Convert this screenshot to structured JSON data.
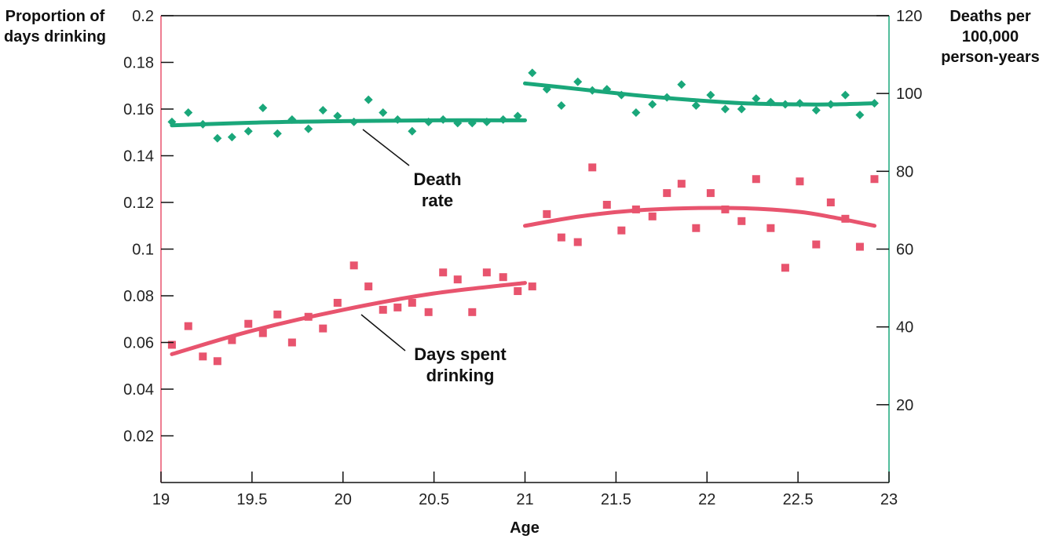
{
  "chart_data": {
    "type": "scatter",
    "xlabel": "Age",
    "ylabel_left": [
      "Proportion of",
      "days drinking"
    ],
    "ylabel_right": [
      "Deaths per",
      "100,000",
      "person-years"
    ],
    "xlim": [
      19,
      23
    ],
    "ylim_left": [
      0,
      0.2
    ],
    "ylim_right": [
      0,
      120
    ],
    "x_ticks": [
      "19",
      "19.5",
      "20",
      "20.5",
      "21",
      "21.5",
      "22",
      "22.5",
      "23"
    ],
    "y_left_ticks": [
      "0.02",
      "0.04",
      "0.06",
      "0.08",
      "0.1",
      "0.12",
      "0.14",
      "0.16",
      "0.18",
      "0.2"
    ],
    "y_right_ticks": [
      "20",
      "40",
      "60",
      "80",
      "100",
      "120"
    ],
    "colors": {
      "days": "#e8546e",
      "death": "#1aa77a",
      "left_axis": "#e8546e",
      "right_axis": "#1aa77a",
      "frame": "#111111"
    },
    "annotations": {
      "death": [
        "Death",
        "rate"
      ],
      "days": [
        "Days spent",
        "drinking"
      ]
    },
    "series": [
      {
        "key": "days",
        "axis": "left",
        "marker": "square",
        "x": [
          19.06,
          19.15,
          19.23,
          19.31,
          19.39,
          19.48,
          19.56,
          19.64,
          19.72,
          19.81,
          19.89,
          19.97,
          20.06,
          20.14,
          20.22,
          20.3,
          20.38,
          20.47,
          20.55,
          20.63,
          20.71,
          20.79,
          20.88,
          20.96,
          21.04,
          21.12,
          21.2,
          21.29,
          21.37,
          21.45,
          21.53,
          21.61,
          21.7,
          21.78,
          21.86,
          21.94,
          22.02,
          22.1,
          22.19,
          22.27,
          22.35,
          22.43,
          22.51,
          22.6,
          22.68,
          22.76,
          22.84,
          22.92
        ],
        "y": [
          0.059,
          0.067,
          0.054,
          0.052,
          0.061,
          0.068,
          0.064,
          0.072,
          0.06,
          0.071,
          0.066,
          0.077,
          0.093,
          0.084,
          0.074,
          0.075,
          0.077,
          0.073,
          0.09,
          0.087,
          0.073,
          0.09,
          0.088,
          0.082,
          0.084,
          0.115,
          0.105,
          0.103,
          0.135,
          0.119,
          0.108,
          0.117,
          0.114,
          0.124,
          0.128,
          0.109,
          0.124,
          0.117,
          0.112,
          0.13,
          0.109,
          0.092,
          0.129,
          0.102,
          0.12,
          0.113,
          0.101,
          0.13
        ]
      },
      {
        "key": "death",
        "axis": "right",
        "marker": "diamond",
        "x": [
          19.06,
          19.15,
          19.23,
          19.31,
          19.39,
          19.48,
          19.56,
          19.64,
          19.72,
          19.81,
          19.89,
          19.97,
          20.06,
          20.14,
          20.22,
          20.3,
          20.38,
          20.47,
          20.55,
          20.63,
          20.71,
          20.79,
          20.88,
          20.96,
          21.04,
          21.12,
          21.2,
          21.29,
          21.37,
          21.45,
          21.53,
          21.61,
          21.7,
          21.78,
          21.86,
          21.94,
          22.02,
          22.1,
          22.19,
          22.27,
          22.35,
          22.43,
          22.51,
          22.6,
          22.68,
          22.76,
          22.84,
          22.92
        ],
        "y": [
          92.7,
          95.1,
          92.1,
          88.5,
          88.8,
          90.3,
          96.3,
          89.7,
          93.3,
          90.9,
          95.7,
          94.2,
          92.7,
          98.4,
          95.1,
          93.3,
          90.3,
          92.7,
          93.3,
          92.4,
          92.4,
          92.7,
          93.3,
          94.2,
          105.3,
          101.1,
          96.9,
          103.0,
          100.8,
          101.1,
          99.6,
          95.1,
          97.2,
          99.0,
          102.3,
          96.9,
          99.6,
          96.0,
          96.0,
          98.7,
          97.8,
          97.2,
          97.5,
          95.7,
          97.2,
          99.6,
          94.5,
          97.5
        ]
      }
    ],
    "fits": [
      {
        "key": "days",
        "axis": "left",
        "x": [
          19.06,
          19.5,
          20.0,
          20.5,
          21.0
        ],
        "y": [
          0.055,
          0.065,
          0.074,
          0.081,
          0.0855
        ]
      },
      {
        "key": "days",
        "axis": "left",
        "x": [
          21.0,
          21.3,
          21.6,
          21.9,
          22.2,
          22.5,
          22.7,
          22.92
        ],
        "y": [
          0.11,
          0.114,
          0.1165,
          0.1175,
          0.1175,
          0.116,
          0.1135,
          0.11
        ]
      },
      {
        "key": "death",
        "axis": "right",
        "x": [
          19.06,
          19.5,
          20.0,
          20.5,
          21.0
        ],
        "y": [
          91.8,
          92.5,
          92.9,
          93.1,
          93.1
        ]
      },
      {
        "key": "death",
        "axis": "right",
        "x": [
          21.0,
          21.3,
          21.6,
          21.9,
          22.2,
          22.5,
          22.7,
          22.92
        ],
        "y": [
          102.6,
          101.1,
          99.6,
          98.4,
          97.5,
          97.2,
          97.2,
          97.5
        ]
      }
    ]
  }
}
